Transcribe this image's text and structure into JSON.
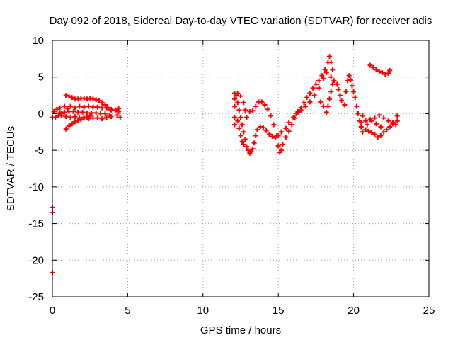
{
  "chart_data": {
    "type": "scatter",
    "title": "Day 092 of 2018, Sidereal Day-to-day VTEC variation (SDTVAR) for receiver adis",
    "xlabel": "GPS time / hours",
    "ylabel": "SDTVAR / TECUs",
    "xlim": [
      0,
      25
    ],
    "ylim": [
      -25,
      10
    ],
    "x_ticks": [
      "0",
      "5",
      "10",
      "15",
      "20",
      "25"
    ],
    "y_ticks": [
      "10",
      "5",
      "0",
      "-5",
      "-10",
      "-15",
      "-20",
      "-25"
    ],
    "grid": true,
    "legend": "none",
    "marker": "plus",
    "colors": {
      "series": "#ff0000",
      "axis": "#000000",
      "grid": "#a0a0a0"
    },
    "series": [
      {
        "points": [
          [
            0.0,
            -0.5
          ],
          [
            0.0,
            -12.8
          ],
          [
            0.0,
            -13.5
          ],
          [
            0.0,
            -21.7
          ],
          [
            0.1,
            0.3
          ],
          [
            0.2,
            -0.5
          ],
          [
            0.3,
            0.6
          ],
          [
            0.4,
            -0.3
          ],
          [
            0.5,
            0.8
          ],
          [
            0.6,
            0.0
          ],
          [
            0.8,
            1.0
          ],
          [
            1.0,
            0.7
          ],
          [
            1.2,
            1.0
          ],
          [
            1.5,
            0.8
          ],
          [
            1.8,
            1.0
          ],
          [
            2.1,
            0.9
          ],
          [
            2.4,
            1.0
          ],
          [
            2.7,
            0.9
          ],
          [
            3.0,
            0.9
          ],
          [
            3.3,
            0.8
          ],
          [
            3.6,
            0.8
          ],
          [
            3.9,
            0.6
          ],
          [
            0.5,
            0.1
          ],
          [
            0.8,
            0.2
          ],
          [
            1.1,
            0.3
          ],
          [
            1.4,
            0.3
          ],
          [
            1.7,
            0.2
          ],
          [
            2.0,
            0.2
          ],
          [
            2.3,
            0.1
          ],
          [
            2.6,
            0.1
          ],
          [
            2.9,
            0.1
          ],
          [
            3.2,
            0.0
          ],
          [
            3.5,
            0.0
          ],
          [
            3.8,
            -0.2
          ],
          [
            0.6,
            -0.3
          ],
          [
            0.9,
            -0.4
          ],
          [
            1.2,
            -0.5
          ],
          [
            1.5,
            -0.4
          ],
          [
            1.8,
            -0.6
          ],
          [
            2.1,
            -0.5
          ],
          [
            2.4,
            -0.7
          ],
          [
            2.7,
            -0.6
          ],
          [
            3.0,
            -0.6
          ],
          [
            3.3,
            -0.7
          ],
          [
            3.6,
            -0.5
          ],
          [
            3.9,
            -0.4
          ],
          [
            0.9,
            2.5
          ],
          [
            1.1,
            2.4
          ],
          [
            1.3,
            2.2
          ],
          [
            1.5,
            2.0
          ],
          [
            1.7,
            2.0
          ],
          [
            1.9,
            2.1
          ],
          [
            2.1,
            2.1
          ],
          [
            2.3,
            2.0
          ],
          [
            2.5,
            2.1
          ],
          [
            2.7,
            2.0
          ],
          [
            2.9,
            1.9
          ],
          [
            3.1,
            1.8
          ],
          [
            3.3,
            1.5
          ],
          [
            3.5,
            1.2
          ],
          [
            3.7,
            0.8
          ],
          [
            3.9,
            0.5
          ],
          [
            0.9,
            -2.1
          ],
          [
            1.1,
            -1.7
          ],
          [
            1.3,
            -1.4
          ],
          [
            1.5,
            -1.1
          ],
          [
            1.7,
            -0.9
          ],
          [
            1.9,
            -0.8
          ],
          [
            2.1,
            -0.6
          ],
          [
            2.3,
            -0.5
          ],
          [
            2.5,
            -0.3
          ],
          [
            4.2,
            0.5
          ],
          [
            4.3,
            -0.2
          ],
          [
            4.4,
            0.3
          ],
          [
            4.5,
            -0.5
          ],
          [
            4.4,
            0.7
          ],
          [
            12.1,
            2.8
          ],
          [
            12.1,
            2.0
          ],
          [
            12.1,
            1.0
          ],
          [
            12.1,
            -0.5
          ],
          [
            12.1,
            -1.5
          ],
          [
            12.2,
            2.5
          ],
          [
            12.3,
            1.5
          ],
          [
            12.4,
            0.5
          ],
          [
            12.5,
            -0.5
          ],
          [
            12.6,
            -1.5
          ],
          [
            12.7,
            -2.5
          ],
          [
            12.8,
            -3.5
          ],
          [
            12.9,
            -4.5
          ],
          [
            13.0,
            -5.0
          ],
          [
            13.1,
            -5.4
          ],
          [
            12.3,
            -1.0
          ],
          [
            12.4,
            -2.0
          ],
          [
            12.5,
            -3.0
          ],
          [
            12.6,
            -3.8
          ],
          [
            12.7,
            -4.2
          ],
          [
            12.3,
            2.8
          ],
          [
            12.5,
            2.4
          ],
          [
            12.7,
            1.5
          ],
          [
            12.8,
            0.5
          ],
          [
            12.9,
            -0.5
          ],
          [
            13.2,
            -5.2
          ],
          [
            13.3,
            -4.8
          ],
          [
            13.4,
            -4.0
          ],
          [
            13.5,
            -3.0
          ],
          [
            13.6,
            -2.2
          ],
          [
            13.8,
            -1.8
          ],
          [
            14.0,
            -1.9
          ],
          [
            14.2,
            -2.3
          ],
          [
            14.4,
            -2.8
          ],
          [
            14.6,
            -3.1
          ],
          [
            14.8,
            -3.3
          ],
          [
            15.0,
            -3.0
          ],
          [
            15.2,
            -2.5
          ],
          [
            15.5,
            -2.0
          ],
          [
            13.1,
            0.3
          ],
          [
            13.3,
            0.4
          ],
          [
            13.5,
            1.0
          ],
          [
            13.7,
            1.6
          ],
          [
            13.9,
            1.6
          ],
          [
            14.1,
            1.2
          ],
          [
            14.3,
            0.6
          ],
          [
            14.5,
            -0.3
          ],
          [
            14.7,
            -1.5
          ],
          [
            14.9,
            -3.0
          ],
          [
            15.0,
            -4.4
          ],
          [
            15.1,
            -5.3
          ],
          [
            15.2,
            -5.0
          ],
          [
            15.3,
            -4.2
          ],
          [
            15.5,
            -3.2
          ],
          [
            15.7,
            -2.4
          ],
          [
            15.9,
            -1.5
          ],
          [
            16.1,
            -0.6
          ],
          [
            16.3,
            0.3
          ],
          [
            16.5,
            0.8
          ],
          [
            16.7,
            1.5
          ],
          [
            16.9,
            2.2
          ],
          [
            17.1,
            2.8
          ],
          [
            17.3,
            3.5
          ],
          [
            17.5,
            4.0
          ],
          [
            17.7,
            4.5
          ],
          [
            17.9,
            5.2
          ],
          [
            18.1,
            6.0
          ],
          [
            18.3,
            7.0
          ],
          [
            18.4,
            7.8
          ],
          [
            16.2,
            0.0
          ],
          [
            16.5,
            0.5
          ],
          [
            16.8,
            1.0
          ],
          [
            17.1,
            1.6
          ],
          [
            17.4,
            2.5
          ],
          [
            17.7,
            3.5
          ],
          [
            18.0,
            4.8
          ],
          [
            18.2,
            5.6
          ],
          [
            15.7,
            -1.2
          ],
          [
            16.0,
            -0.5
          ],
          [
            16.3,
            0.2
          ],
          [
            18.5,
            7.0
          ],
          [
            18.6,
            6.0
          ],
          [
            18.5,
            5.0
          ],
          [
            18.6,
            4.0
          ],
          [
            18.5,
            3.0
          ],
          [
            18.4,
            2.0
          ],
          [
            18.3,
            1.0
          ],
          [
            18.2,
            0.2
          ],
          [
            18.0,
            1.0
          ],
          [
            17.8,
            1.6
          ],
          [
            18.7,
            4.5
          ],
          [
            18.9,
            4.0
          ],
          [
            19.0,
            3.3
          ],
          [
            19.1,
            2.5
          ],
          [
            19.2,
            1.8
          ],
          [
            19.4,
            1.2
          ],
          [
            19.5,
            3.0
          ],
          [
            19.6,
            4.5
          ],
          [
            19.7,
            5.2
          ],
          [
            19.8,
            4.6
          ],
          [
            19.9,
            3.8
          ],
          [
            20.0,
            3.0
          ],
          [
            20.1,
            2.2
          ],
          [
            20.2,
            1.0
          ],
          [
            20.3,
            0.0
          ],
          [
            20.4,
            -1.0
          ],
          [
            20.5,
            -1.8
          ],
          [
            20.6,
            -2.5
          ],
          [
            20.8,
            -2.2
          ],
          [
            21.0,
            -2.4
          ],
          [
            21.2,
            -2.6
          ],
          [
            21.4,
            -2.8
          ],
          [
            21.6,
            -3.2
          ],
          [
            21.8,
            -3.0
          ],
          [
            22.0,
            -2.5
          ],
          [
            22.2,
            -2.2
          ],
          [
            22.4,
            -1.8
          ],
          [
            22.6,
            -1.4
          ],
          [
            22.8,
            -1.5
          ],
          [
            22.9,
            -0.3
          ],
          [
            20.5,
            -1.2
          ],
          [
            20.8,
            -1.0
          ],
          [
            21.1,
            -0.8
          ],
          [
            21.4,
            -0.6
          ],
          [
            21.7,
            -0.2
          ],
          [
            20.6,
            -0.3
          ],
          [
            20.9,
            -1.5
          ],
          [
            21.2,
            -1.0
          ],
          [
            21.5,
            -1.4
          ],
          [
            21.8,
            -1.8
          ],
          [
            22.0,
            -0.6
          ],
          [
            22.3,
            -1.0
          ],
          [
            22.6,
            -1.2
          ],
          [
            22.9,
            -1.0
          ],
          [
            21.1,
            6.6
          ],
          [
            21.3,
            6.3
          ],
          [
            21.5,
            6.0
          ],
          [
            21.7,
            5.8
          ],
          [
            21.9,
            5.6
          ],
          [
            22.1,
            5.4
          ],
          [
            22.3,
            5.5
          ],
          [
            22.4,
            5.9
          ]
        ]
      }
    ]
  }
}
